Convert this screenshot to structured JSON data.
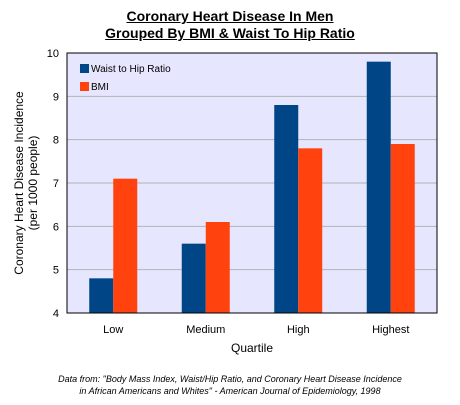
{
  "chart_data": {
    "type": "bar",
    "title_line1": "Coronary Heart Disease In Men",
    "title_line2": "Grouped By BMI & Waist To Hip Ratio",
    "xlabel": "Quartile",
    "ylabel_line1": "Coronary Heart Disease Incidence",
    "ylabel_line2": "(per 1000 people)",
    "categories": [
      "Low",
      "Medium",
      "High",
      "Highest"
    ],
    "series": [
      {
        "name": "Waist to Hip Ratio",
        "color": "#004586",
        "values": [
          4.8,
          5.6,
          8.8,
          9.8
        ]
      },
      {
        "name": "BMI",
        "color": "#ff420e",
        "values": [
          7.1,
          6.1,
          7.8,
          7.9
        ]
      }
    ],
    "ylim": [
      4,
      10
    ],
    "yticks": [
      "4",
      "5",
      "6",
      "7",
      "8",
      "9",
      "10"
    ],
    "grid": true,
    "legend": "top-left",
    "plot_background": "#e6e6ff",
    "source_line1": "Data from: \"Body Mass Index, Waist/Hip Ratio, and Coronary Heart Disease Incidence",
    "source_line2": "in African Americans and Whites\" - American Journal of Epidemiology, 1998"
  }
}
